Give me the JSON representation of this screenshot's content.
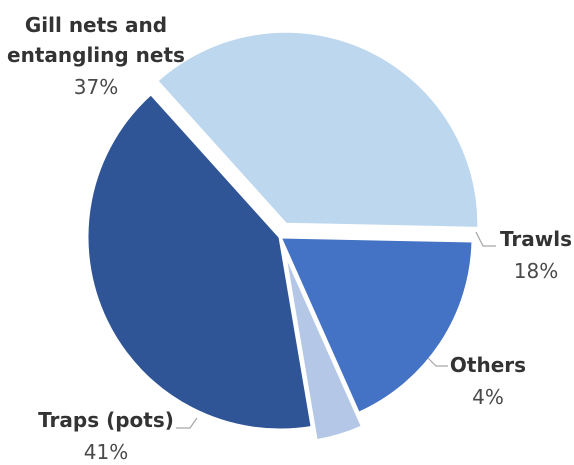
{
  "chart_data": {
    "type": "pie",
    "title": "",
    "slices": [
      {
        "label": "Gill nets and entangling nets",
        "value": 37,
        "value_label": "37%",
        "color": "#bdd7ee",
        "exploded": true
      },
      {
        "label": "Trawls",
        "value": 18,
        "value_label": "18%",
        "color": "#4472c4",
        "exploded": false
      },
      {
        "label": "Others",
        "value": 4,
        "value_label": "4%",
        "color": "#b4c7e7",
        "exploded": true
      },
      {
        "label": "Traps (pots)",
        "value": 41,
        "value_label": "41%",
        "color": "#2f5597",
        "exploded": false
      }
    ],
    "legend": "none",
    "data_labels": "outside with leader lines"
  }
}
